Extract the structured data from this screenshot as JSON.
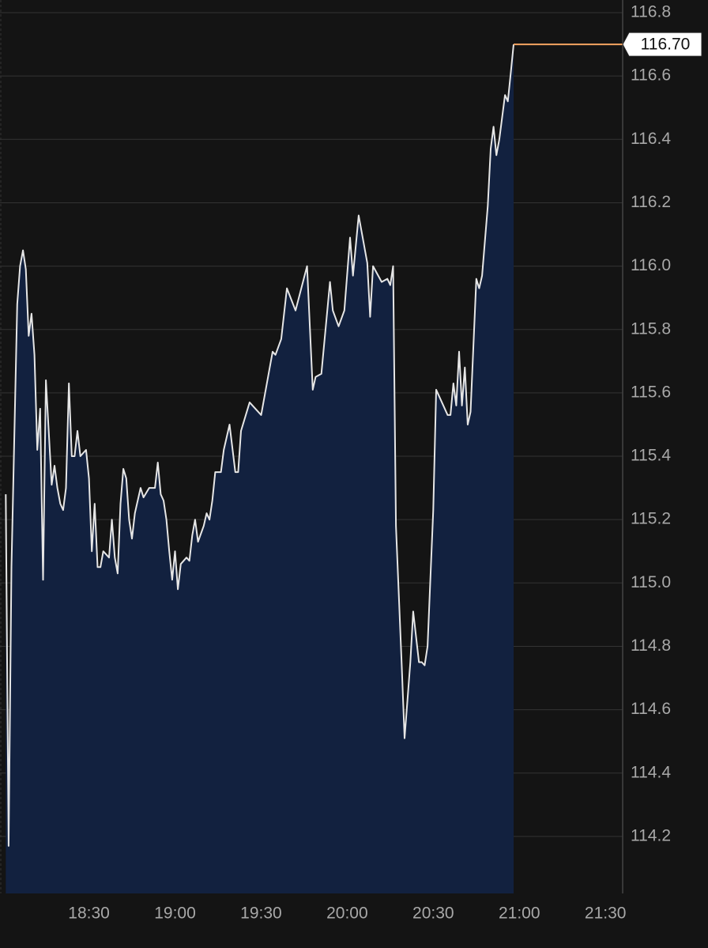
{
  "chart_data": {
    "type": "area",
    "x": [
      "18:01",
      "18:02",
      "18:03",
      "18:05",
      "18:06",
      "18:07",
      "18:08",
      "18:09",
      "18:10",
      "18:11",
      "18:12",
      "18:13",
      "18:14",
      "18:15",
      "18:17",
      "18:18",
      "18:19",
      "18:20",
      "18:21",
      "18:22",
      "18:23",
      "18:24",
      "18:25",
      "18:26",
      "18:27",
      "18:29",
      "18:30",
      "18:31",
      "18:32",
      "18:33",
      "18:34",
      "18:35",
      "18:37",
      "18:38",
      "18:39",
      "18:40",
      "18:41",
      "18:42",
      "18:43",
      "18:44",
      "18:45",
      "18:46",
      "18:48",
      "18:49",
      "18:51",
      "18:53",
      "18:54",
      "18:55",
      "18:56",
      "18:57",
      "18:58",
      "18:59",
      "19:00",
      "19:01",
      "19:02",
      "19:04",
      "19:05",
      "19:06",
      "19:07",
      "19:08",
      "19:10",
      "19:11",
      "19:12",
      "19:13",
      "19:14",
      "19:16",
      "19:17",
      "19:19",
      "19:21",
      "19:22",
      "19:23",
      "19:26",
      "19:30",
      "19:34",
      "19:35",
      "19:37",
      "19:39",
      "19:42",
      "19:46",
      "19:48",
      "19:49",
      "19:51",
      "19:54",
      "19:55",
      "19:57",
      "19:59",
      "20:01",
      "20:02",
      "20:04",
      "20:07",
      "20:08",
      "20:09",
      "20:12",
      "20:14",
      "20:15",
      "20:16",
      "20:17",
      "20:19",
      "20:20",
      "20:22",
      "20:23",
      "20:25",
      "20:26",
      "20:27",
      "20:28",
      "20:30",
      "20:31",
      "20:35",
      "20:36",
      "20:37",
      "20:38",
      "20:39",
      "20:40",
      "20:41",
      "20:42",
      "20:43",
      "20:45",
      "20:46",
      "20:47",
      "20:49",
      "20:50",
      "20:51",
      "20:52",
      "20:53",
      "20:55",
      "20:56",
      "20:57",
      "20:58"
    ],
    "values": [
      115.28,
      114.17,
      115.05,
      115.88,
      116.0,
      116.05,
      115.99,
      115.78,
      115.85,
      115.72,
      115.42,
      115.55,
      115.01,
      115.64,
      115.31,
      115.37,
      115.3,
      115.25,
      115.23,
      115.3,
      115.63,
      115.4,
      115.4,
      115.48,
      115.4,
      115.42,
      115.33,
      115.1,
      115.25,
      115.05,
      115.05,
      115.1,
      115.08,
      115.2,
      115.08,
      115.03,
      115.25,
      115.36,
      115.33,
      115.2,
      115.14,
      115.22,
      115.3,
      115.27,
      115.3,
      115.3,
      115.38,
      115.28,
      115.26,
      115.2,
      115.1,
      115.01,
      115.1,
      114.98,
      115.06,
      115.08,
      115.07,
      115.15,
      115.2,
      115.13,
      115.18,
      115.22,
      115.2,
      115.26,
      115.35,
      115.35,
      115.42,
      115.5,
      115.35,
      115.35,
      115.48,
      115.57,
      115.53,
      115.73,
      115.72,
      115.77,
      115.93,
      115.86,
      116.0,
      115.61,
      115.65,
      115.66,
      115.95,
      115.86,
      115.81,
      115.86,
      116.09,
      115.97,
      116.16,
      116.01,
      115.84,
      116.0,
      115.95,
      115.96,
      115.94,
      116.0,
      115.18,
      114.74,
      114.51,
      114.75,
      114.91,
      114.75,
      114.75,
      114.74,
      114.8,
      115.23,
      115.61,
      115.53,
      115.53,
      115.63,
      115.56,
      115.73,
      115.56,
      115.68,
      115.5,
      115.54,
      115.96,
      115.93,
      115.97,
      116.19,
      116.37,
      116.44,
      116.35,
      116.4,
      116.54,
      116.52,
      116.61,
      116.7
    ],
    "color": "#e6e6e6",
    "fill_color": "#12213f",
    "last_price": {
      "value": 116.7,
      "label": "116.70"
    },
    "last_price_color": "#f4a461",
    "xlim": [
      "17:59",
      "21:36"
    ],
    "xticks": [
      "18:30",
      "19:00",
      "19:30",
      "20:00",
      "20:30",
      "21:00",
      "21:30"
    ],
    "ylim": [
      114.02,
      116.84
    ],
    "yticks": [
      114.2,
      114.4,
      114.6,
      114.8,
      {
        "value": 115,
        "label": "115.0"
      },
      115.2,
      115.4,
      115.6,
      115.8,
      {
        "value": 116,
        "label": "116.0"
      },
      116.2,
      116.4,
      116.6,
      116.8
    ],
    "grid": true
  }
}
